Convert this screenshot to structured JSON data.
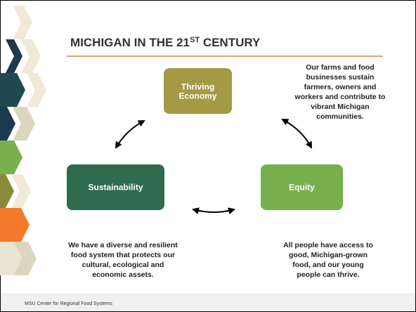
{
  "header": {
    "title": {
      "main": "MICHIGAN IN THE 21",
      "sup": "ST",
      "rest": " CENTURY"
    }
  },
  "nodes": [
    {
      "label": [
        "Thriving",
        "Economy"
      ],
      "description": [
        "Our farms and food",
        "businesses sustain",
        "farmers, owners and",
        "workers and contribute to",
        "vibrant Michigan",
        "communities."
      ]
    },
    {
      "label": [
        "Sustainability"
      ],
      "description": [
        "We have a diverse and resilient",
        "food system that protects our",
        "cultural, ecological and",
        "economic assets."
      ]
    },
    {
      "label": [
        "Equity"
      ],
      "description": [
        "All people have access to",
        "good, Michigan-grown",
        "food, and our young",
        "people can thrive."
      ]
    }
  ],
  "footer": {
    "text": "MSU Center for Regional Food Systems"
  }
}
